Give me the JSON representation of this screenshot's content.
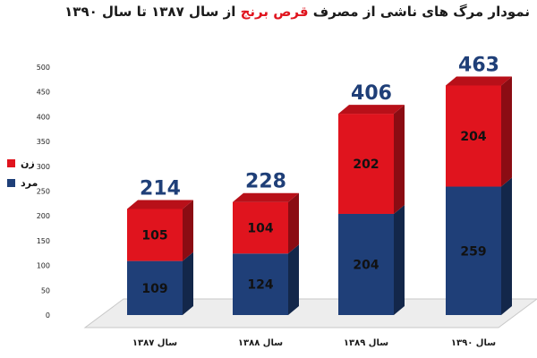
{
  "title": {
    "before": "نمودار مرگ های ناشی از مصرف ",
    "highlight": "قرص برنج",
    "after": " از سال ۱۳۸۷ تا سال ۱۳۹۰",
    "highlight_color": "#e0141e"
  },
  "chart_data": {
    "type": "bar",
    "stacked": true,
    "categories": [
      "سال ۱۳۸۷",
      "سال ۱۳۸۸",
      "سال ۱۳۸۹",
      "سال ۱۳۹۰"
    ],
    "series": [
      {
        "name": "مرد",
        "color": "#1f3f78",
        "values": [
          109,
          124,
          204,
          259
        ]
      },
      {
        "name": "زن",
        "color": "#e0141e",
        "values": [
          105,
          104,
          202,
          204
        ]
      }
    ],
    "totals": [
      214,
      228,
      406,
      463
    ],
    "ylim": [
      0,
      500
    ],
    "yticks": [
      0,
      50,
      100,
      150,
      200,
      250,
      300,
      350,
      400,
      450,
      500
    ],
    "legend_position": "left",
    "grid": false
  }
}
